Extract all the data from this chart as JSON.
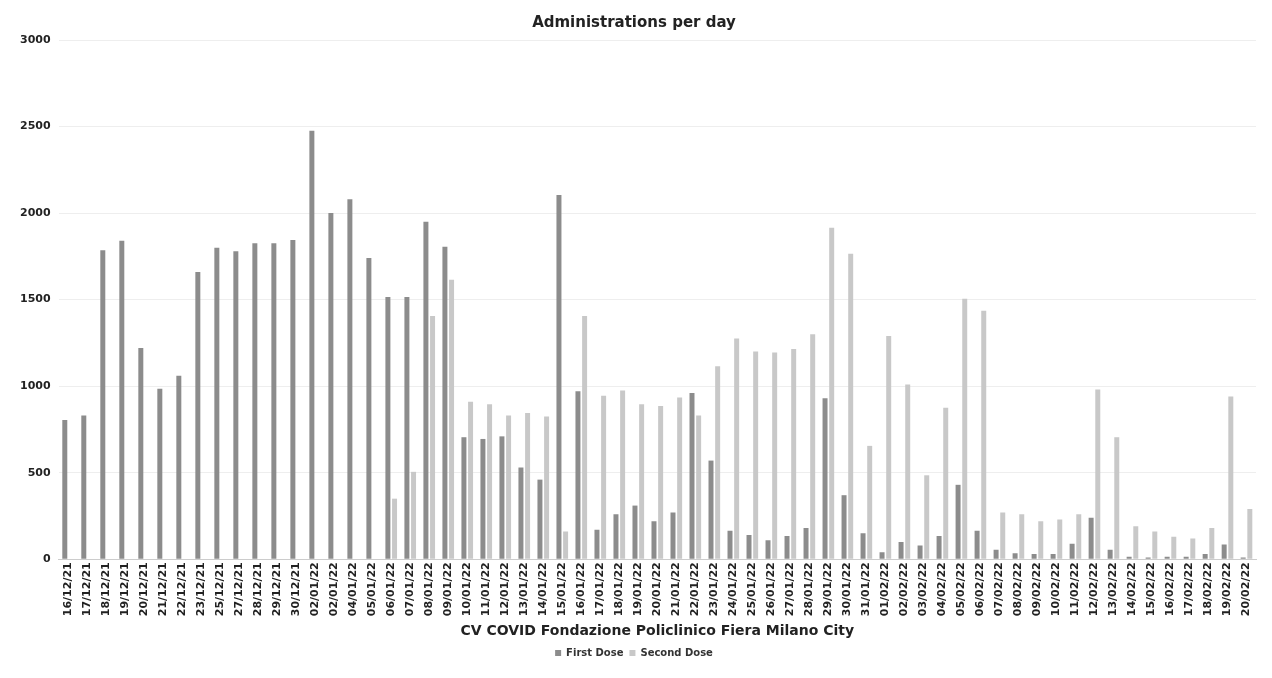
{
  "chart_data": {
    "type": "bar",
    "title": "Administrations per day",
    "xlabel": "CV COVID Fondazione Policlinico Fiera Milano City",
    "categories": [
      "16/12/21",
      "17/12/21",
      "18/12/21",
      "19/12/21",
      "20/12/21",
      "21/12/21",
      "22/12/21",
      "23/12/21",
      "25/12/21",
      "27/12/21",
      "28/12/21",
      "29/12/21",
      "30/12/21",
      "02/01/22",
      "02/01/22",
      "04/01/22",
      "05/01/22",
      "06/01/22",
      "07/01/22",
      "08/01/22",
      "09/01/22",
      "10/01/22",
      "11/01/22",
      "12/01/22",
      "13/01/22",
      "14/01/22",
      "15/01/22",
      "16/01/22",
      "17/01/22",
      "18/01/22",
      "19/01/22",
      "20/01/22",
      "21/01/22",
      "22/01/22",
      "23/01/22",
      "24/01/22",
      "25/01/22",
      "26/01/22",
      "27/01/22",
      "28/01/22",
      "29/01/22",
      "30/01/22",
      "31/01/22",
      "01/02/22",
      "02/02/22",
      "03/02/22",
      "04/02/22",
      "05/02/22",
      "06/02/22",
      "07/02/22",
      "08/02/22",
      "09/02/22",
      "10/02/22",
      "11/02/22",
      "12/02/22",
      "13/02/22",
      "14/02/22",
      "15/02/22",
      "16/02/22",
      "17/02/22",
      "18/02/22",
      "19/02/22",
      "20/02/22"
    ],
    "series": [
      {
        "name": "First Dose",
        "color": "#8c8c8c",
        "values": [
          805,
          830,
          1785,
          1840,
          1220,
          985,
          1060,
          1660,
          1800,
          1780,
          1825,
          1825,
          1845,
          2475,
          2000,
          2080,
          1740,
          1515,
          1515,
          1950,
          1805,
          705,
          695,
          710,
          530,
          460,
          2105,
          970,
          170,
          260,
          310,
          220,
          270,
          960,
          570,
          165,
          140,
          110,
          135,
          180,
          930,
          370,
          150,
          40,
          100,
          80,
          135,
          430,
          165,
          55,
          35,
          30,
          30,
          90,
          240,
          55,
          15,
          10,
          15,
          15,
          30,
          85,
          10
        ]
      },
      {
        "name": "Second Dose",
        "color": "#c8c8c8",
        "values": [
          null,
          null,
          null,
          null,
          null,
          null,
          null,
          null,
          null,
          null,
          null,
          null,
          null,
          null,
          null,
          null,
          null,
          350,
          505,
          1405,
          1615,
          910,
          895,
          830,
          845,
          825,
          160,
          1405,
          945,
          975,
          895,
          885,
          935,
          830,
          1115,
          1275,
          1200,
          1195,
          1215,
          1300,
          1915,
          1765,
          655,
          1290,
          1010,
          485,
          875,
          1505,
          1435,
          270,
          260,
          220,
          230,
          260,
          980,
          705,
          190,
          160,
          130,
          120,
          180,
          940,
          290
        ]
      }
    ],
    "ylim": [
      0,
      3000
    ],
    "yticks": [
      0,
      500,
      1000,
      1500,
      2000,
      2500,
      3000
    ],
    "grid": "y",
    "legend": "bottom"
  }
}
